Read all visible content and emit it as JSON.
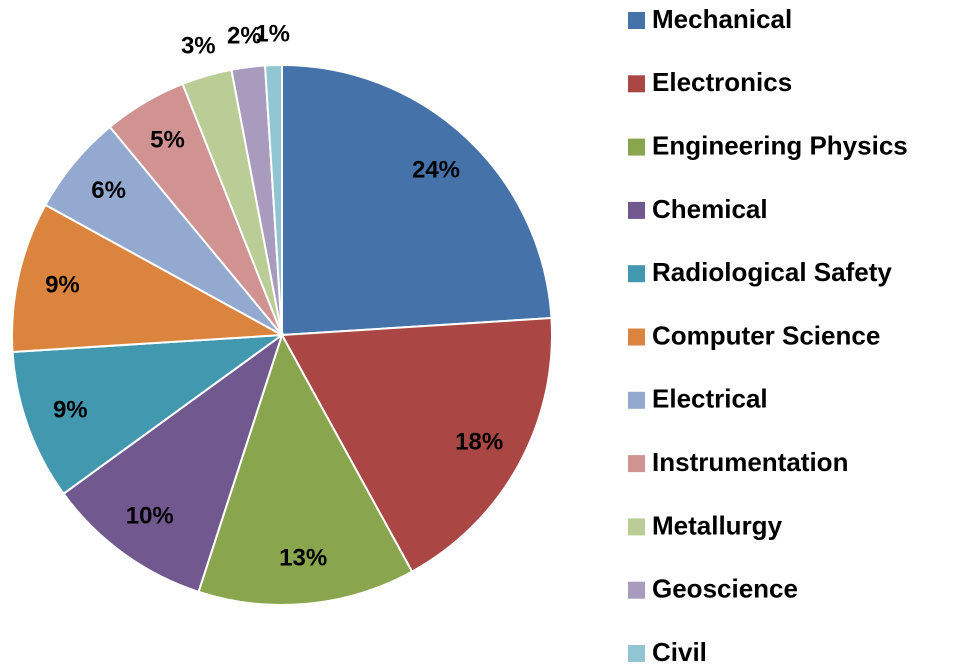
{
  "chart_data": {
    "type": "pie",
    "categories": [
      "Mechanical",
      "Electronics",
      "Engineering Physics",
      "Chemical",
      "Radiological Safety",
      "Computer Science",
      "Electrical",
      "Instrumentation",
      "Metallurgy",
      "Geoscience",
      "Civil"
    ],
    "values": [
      24,
      18,
      13,
      10,
      9,
      9,
      6,
      5,
      3,
      2,
      1
    ],
    "value_labels": [
      "24%",
      "18%",
      "13%",
      "10%",
      "9%",
      "9%",
      "6%",
      "5%",
      "3%",
      "2%",
      "1%"
    ],
    "colors": [
      "#4572a8",
      "#aa4643",
      "#89a54e",
      "#71588f",
      "#4198af",
      "#db843d",
      "#93a9d0",
      "#d09392",
      "#bacd96",
      "#a99bbd",
      "#92c5d3"
    ],
    "legend": "right"
  }
}
